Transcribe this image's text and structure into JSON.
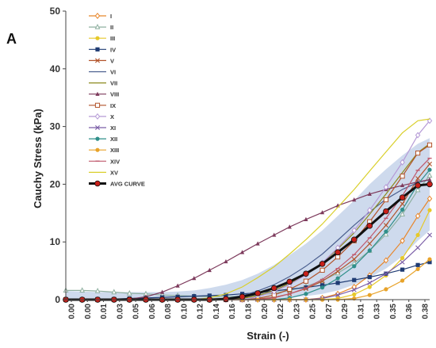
{
  "panel_label": "A",
  "chart_data": {
    "type": "line",
    "title": "",
    "xlabel": "Strain (-)",
    "ylabel": "Cauchy Stress (kPa)",
    "ylim": [
      0,
      50
    ],
    "yticks": [
      "0",
      "10",
      "20",
      "30",
      "40",
      "50"
    ],
    "xticks": [
      "0.00",
      "0.00",
      "0.01",
      "0.03",
      "0.05",
      "0.06",
      "0.08",
      "0.10",
      "0.12",
      "0.14",
      "0.16",
      "0.18",
      "0.20",
      "0.22",
      "0.23",
      "0.25",
      "0.27",
      "0.29",
      "0.31",
      "0.33",
      "0.35",
      "0.36",
      "0.38"
    ],
    "x": [
      0.0,
      0.018,
      0.035,
      0.053,
      0.07,
      0.088,
      0.106,
      0.123,
      0.141,
      0.158,
      0.176,
      0.194,
      0.211,
      0.229,
      0.246,
      0.264,
      0.282,
      0.299,
      0.317,
      0.334,
      0.352,
      0.37,
      0.387,
      0.4
    ],
    "grid": false,
    "legend_position": "top-left",
    "band": {
      "lower": [
        0,
        0,
        0,
        0,
        0,
        0,
        0,
        0,
        0,
        0,
        0,
        0,
        0,
        0.1,
        0.3,
        0.6,
        1.0,
        1.6,
        2.6,
        3.8,
        5.4,
        7.5,
        10.2,
        12.0
      ],
      "upper": [
        1.5,
        1.4,
        1.3,
        1.3,
        1.3,
        1.3,
        1.3,
        1.4,
        1.6,
        2.0,
        2.6,
        3.4,
        4.5,
        6.0,
        7.7,
        9.7,
        12.0,
        14.5,
        17.2,
        20.0,
        22.6,
        25.0,
        27.0,
        28.0
      ],
      "color": "#c6d3ea"
    },
    "series": [
      {
        "name": "I",
        "color": "#e8862a",
        "marker": "diamond-open",
        "values": [
          0,
          0,
          0,
          0,
          0,
          0,
          0,
          0,
          0,
          0,
          0,
          0,
          0,
          0,
          0,
          0,
          0.3,
          1.0,
          2.2,
          4.2,
          6.8,
          10.2,
          14.5,
          17.5
        ]
      },
      {
        "name": "II",
        "color": "#8fb0a0",
        "marker": "triangle-open",
        "values": [
          1.6,
          1.6,
          1.5,
          1.3,
          1.1,
          1.0,
          0.8,
          0.7,
          0.6,
          0.5,
          0.5,
          0.6,
          0.8,
          1.1,
          1.6,
          2.3,
          3.3,
          4.6,
          6.3,
          8.5,
          11.3,
          14.8,
          19.0,
          21.5
        ]
      },
      {
        "name": "III",
        "color": "#e6c92a",
        "marker": "circle",
        "values": [
          0,
          0,
          0,
          0,
          0,
          0,
          0,
          0,
          0,
          0,
          0,
          0,
          0,
          0,
          0,
          0,
          0,
          0.2,
          0.9,
          2.2,
          4.2,
          7.2,
          11.2,
          15.5
        ]
      },
      {
        "name": "IV",
        "color": "#1f3b73",
        "marker": "square",
        "values": [
          0,
          0,
          0.1,
          0.1,
          0.2,
          0.3,
          0.4,
          0.5,
          0.6,
          0.7,
          0.8,
          1.0,
          1.2,
          1.5,
          1.8,
          2.1,
          2.5,
          2.9,
          3.4,
          3.9,
          4.5,
          5.2,
          6.0,
          6.5
        ]
      },
      {
        "name": "V",
        "color": "#b2532a",
        "marker": "x",
        "values": [
          0,
          0,
          0,
          0,
          0,
          0,
          0,
          0,
          0,
          0,
          0,
          0,
          0.1,
          0.4,
          1.0,
          1.9,
          3.2,
          4.9,
          7.0,
          9.7,
          12.9,
          16.6,
          21.0,
          23.5
        ]
      },
      {
        "name": "VI",
        "color": "#4b5f8f",
        "marker": "none",
        "values": [
          0,
          0,
          0,
          0,
          0,
          0,
          0,
          0,
          0,
          0,
          0.2,
          0.7,
          1.5,
          2.6,
          4.0,
          5.8,
          7.9,
          10.3,
          12.9,
          15.2,
          17.4,
          19.1,
          20.3,
          20.8
        ]
      },
      {
        "name": "VII",
        "color": "#8c8a1e",
        "marker": "none",
        "values": [
          0,
          0,
          0,
          0,
          0,
          0,
          0,
          0,
          0,
          0,
          0,
          0.2,
          0.7,
          1.6,
          2.8,
          4.4,
          6.4,
          8.8,
          11.6,
          14.8,
          18.3,
          22.0,
          25.5,
          27.0
        ]
      },
      {
        "name": "VIII",
        "color": "#7d3a5c",
        "marker": "triangle",
        "values": [
          0,
          0,
          0,
          0,
          0.1,
          0.5,
          1.3,
          2.4,
          3.7,
          5.1,
          6.6,
          8.2,
          9.7,
          11.2,
          12.6,
          13.9,
          15.1,
          16.3,
          17.3,
          18.3,
          19.1,
          19.8,
          20.4,
          20.8
        ]
      },
      {
        "name": "IX",
        "color": "#b2532a",
        "marker": "square-open",
        "values": [
          0,
          0,
          0,
          0,
          0,
          0,
          0,
          0,
          0,
          0,
          0,
          0,
          0.2,
          0.8,
          1.8,
          3.2,
          5.1,
          7.4,
          10.2,
          13.5,
          17.3,
          21.4,
          25.4,
          26.8
        ]
      },
      {
        "name": "X",
        "color": "#b59ad6",
        "marker": "diamond-open",
        "values": [
          0,
          0,
          0,
          0,
          0,
          0,
          0,
          0,
          0,
          0,
          0,
          0,
          0.5,
          1.4,
          2.6,
          4.3,
          6.4,
          9.0,
          12.0,
          15.5,
          19.5,
          23.8,
          28.5,
          31.0
        ]
      },
      {
        "name": "XI",
        "color": "#7b5ea7",
        "marker": "x",
        "values": [
          0,
          0,
          0,
          0,
          0,
          0,
          0,
          0,
          0,
          0,
          0,
          0,
          0,
          0,
          0,
          0,
          0.2,
          0.8,
          1.7,
          2.9,
          4.5,
          6.5,
          9.0,
          11.2
        ]
      },
      {
        "name": "XII",
        "color": "#2f8f8a",
        "marker": "circle",
        "values": [
          0,
          0,
          0,
          0,
          0,
          0,
          0,
          0,
          0,
          0,
          0,
          0,
          0,
          0,
          0.3,
          1.0,
          2.1,
          3.7,
          5.8,
          8.5,
          11.8,
          15.6,
          20.0,
          22.5
        ]
      },
      {
        "name": "XIII",
        "color": "#e8a32a",
        "marker": "circle",
        "values": [
          0,
          0,
          0,
          0,
          0,
          0,
          0,
          0,
          0,
          0,
          0,
          0,
          0,
          0,
          0,
          0,
          0,
          0,
          0.2,
          0.8,
          1.8,
          3.3,
          5.3,
          7.0
        ]
      },
      {
        "name": "XIV",
        "color": "#c05a6e",
        "marker": "dash",
        "values": [
          0,
          0,
          0,
          0,
          0,
          0,
          0,
          0,
          0,
          0,
          0,
          0,
          0,
          0.3,
          1.0,
          2.0,
          3.5,
          5.4,
          7.8,
          10.7,
          14.1,
          18.0,
          22.4,
          24.5
        ]
      },
      {
        "name": "XV",
        "color": "#d9cf2a",
        "marker": "none",
        "values": [
          0,
          0,
          0,
          0,
          0,
          0,
          0,
          0,
          0,
          0.3,
          1.0,
          2.2,
          3.8,
          5.7,
          7.9,
          10.4,
          13.1,
          16.0,
          19.1,
          22.3,
          25.6,
          28.9,
          31.0,
          31.3
        ]
      },
      {
        "name": "AVG CURVE",
        "color": "#111111",
        "marker": "circle-red",
        "width": 3,
        "values": [
          0,
          0,
          0,
          0,
          0,
          0,
          0,
          0,
          0,
          0,
          0.1,
          0.5,
          1.1,
          2.0,
          3.1,
          4.5,
          6.2,
          8.2,
          10.4,
          12.8,
          15.3,
          17.7,
          19.8,
          20.0
        ]
      }
    ]
  }
}
